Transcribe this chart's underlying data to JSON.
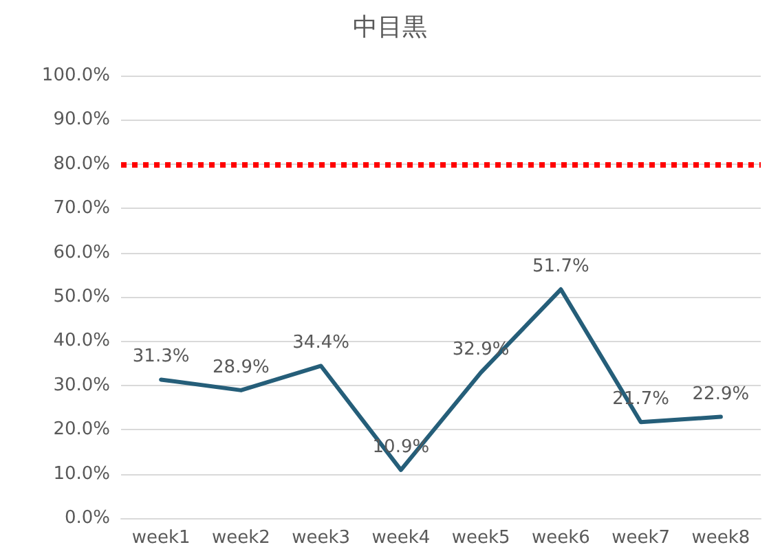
{
  "chart_data": {
    "type": "line",
    "title": "中目黒",
    "categories": [
      "week1",
      "week2",
      "week3",
      "week4",
      "week5",
      "week6",
      "week7",
      "week8"
    ],
    "series": [
      {
        "color": "#255e79",
        "values": [
          31.3,
          28.9,
          34.4,
          10.9,
          32.9,
          51.7,
          21.7,
          22.9
        ],
        "value_labels": [
          "31.3%",
          "28.9%",
          "34.4%",
          "10.9%",
          "32.9%",
          "51.7%",
          "21.7%",
          "22.9%"
        ]
      }
    ],
    "ylim": [
      0,
      100
    ],
    "yticks": [
      {
        "value": 0,
        "label": "0.0%"
      },
      {
        "value": 10,
        "label": "10.0%"
      },
      {
        "value": 20,
        "label": "20.0%"
      },
      {
        "value": 30,
        "label": "30.0%"
      },
      {
        "value": 40,
        "label": "40.0%"
      },
      {
        "value": 50,
        "label": "50.0%"
      },
      {
        "value": 60,
        "label": "60.0%"
      },
      {
        "value": 70,
        "label": "70.0%"
      },
      {
        "value": 80,
        "label": "80.0%"
      },
      {
        "value": 90,
        "label": "90.0%"
      },
      {
        "value": 100,
        "label": "100.0%"
      }
    ],
    "grid": "y",
    "marker": "none",
    "line_style": "solid",
    "ref_lines": [
      {
        "axis": "y",
        "value": 80,
        "color": "#ff0000",
        "line_style": "dotted"
      }
    ]
  }
}
